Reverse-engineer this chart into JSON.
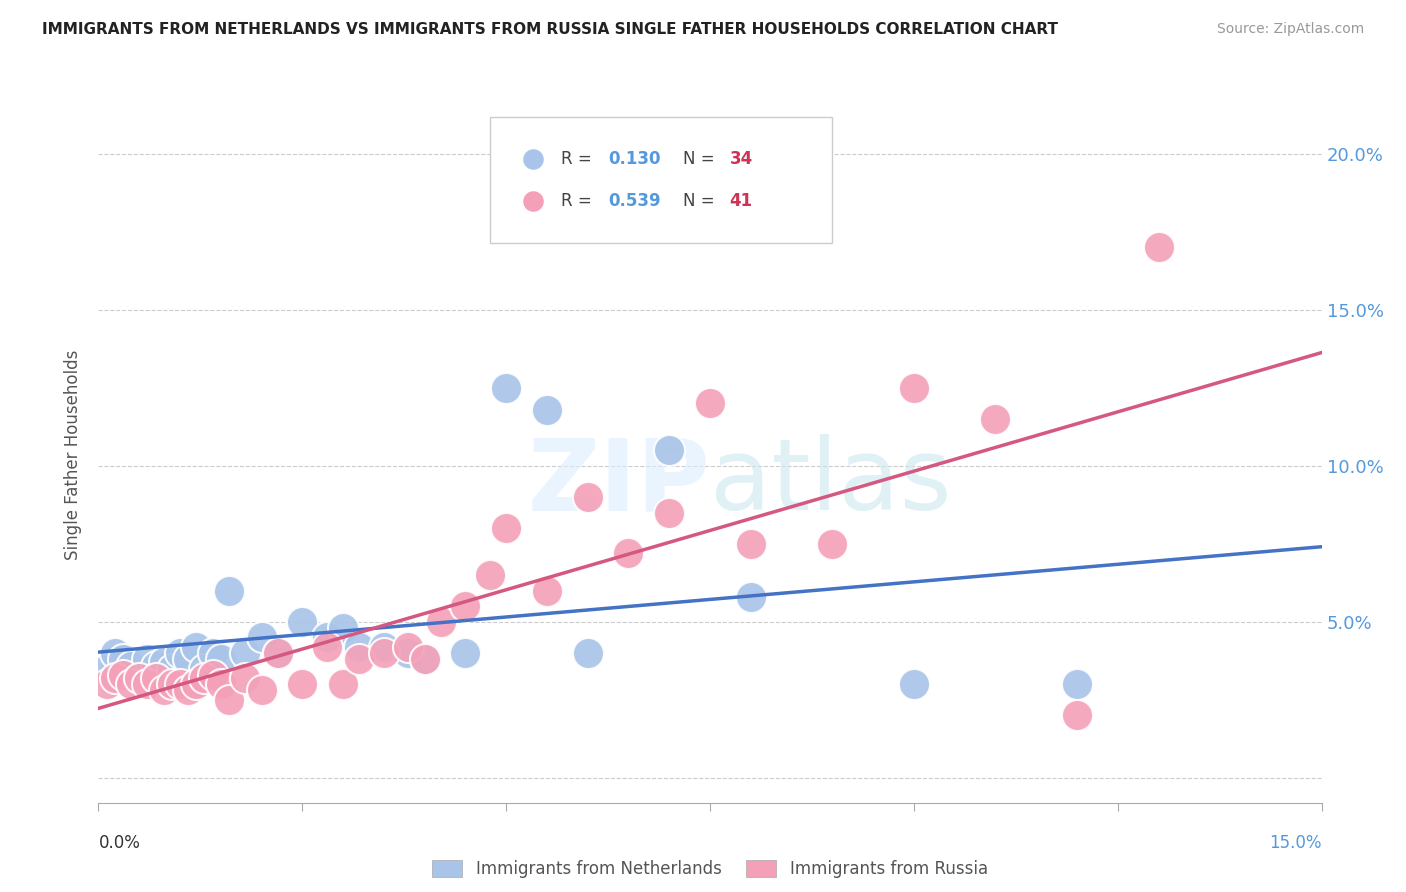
{
  "title": "IMMIGRANTS FROM NETHERLANDS VS IMMIGRANTS FROM RUSSIA SINGLE FATHER HOUSEHOLDS CORRELATION CHART",
  "source": "Source: ZipAtlas.com",
  "ylabel": "Single Father Households",
  "xlim": [
    0.0,
    0.15
  ],
  "ylim": [
    -0.008,
    0.215
  ],
  "yticks": [
    0.0,
    0.05,
    0.1,
    0.15,
    0.2
  ],
  "legend_r1": "0.130",
  "legend_n1": "34",
  "legend_r2": "0.539",
  "legend_n2": "41",
  "legend_label1": "Immigrants from Netherlands",
  "legend_label2": "Immigrants from Russia",
  "color_blue": "#a8c4e8",
  "color_pink": "#f4a0b8",
  "color_blue_line": "#4472c4",
  "color_pink_line": "#d45880",
  "nl_x": [
    0.001,
    0.002,
    0.003,
    0.004,
    0.005,
    0.006,
    0.007,
    0.008,
    0.009,
    0.01,
    0.011,
    0.012,
    0.013,
    0.014,
    0.015,
    0.016,
    0.018,
    0.02,
    0.022,
    0.025,
    0.028,
    0.03,
    0.032,
    0.035,
    0.038,
    0.04,
    0.045,
    0.05,
    0.055,
    0.06,
    0.07,
    0.08,
    0.1,
    0.12
  ],
  "nl_y": [
    0.035,
    0.04,
    0.038,
    0.036,
    0.032,
    0.038,
    0.036,
    0.037,
    0.035,
    0.04,
    0.038,
    0.042,
    0.035,
    0.04,
    0.038,
    0.06,
    0.04,
    0.045,
    0.04,
    0.05,
    0.045,
    0.048,
    0.042,
    0.042,
    0.04,
    0.038,
    0.04,
    0.125,
    0.118,
    0.04,
    0.105,
    0.058,
    0.03,
    0.03
  ],
  "ru_x": [
    0.001,
    0.002,
    0.003,
    0.004,
    0.005,
    0.006,
    0.007,
    0.008,
    0.009,
    0.01,
    0.011,
    0.012,
    0.013,
    0.014,
    0.015,
    0.016,
    0.018,
    0.02,
    0.022,
    0.025,
    0.028,
    0.03,
    0.032,
    0.035,
    0.038,
    0.04,
    0.042,
    0.045,
    0.048,
    0.05,
    0.055,
    0.06,
    0.065,
    0.07,
    0.075,
    0.08,
    0.09,
    0.1,
    0.11,
    0.12,
    0.13
  ],
  "ru_y": [
    0.03,
    0.032,
    0.033,
    0.03,
    0.032,
    0.03,
    0.032,
    0.028,
    0.03,
    0.03,
    0.028,
    0.03,
    0.032,
    0.033,
    0.03,
    0.025,
    0.032,
    0.028,
    0.04,
    0.03,
    0.042,
    0.03,
    0.038,
    0.04,
    0.042,
    0.038,
    0.05,
    0.055,
    0.065,
    0.08,
    0.06,
    0.09,
    0.072,
    0.085,
    0.12,
    0.075,
    0.075,
    0.125,
    0.115,
    0.02,
    0.17
  ]
}
